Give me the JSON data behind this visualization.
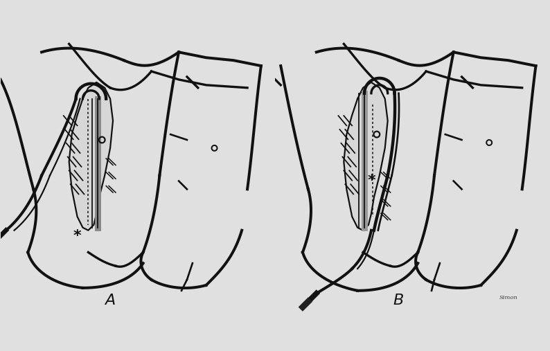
{
  "background_color": "#e0e0e0",
  "label_A": "A",
  "label_B": "B",
  "label_fontsize": 16,
  "line_color": "#111111",
  "line_color_light": "#555555",
  "line_width": 1.6,
  "figure_width": 7.94,
  "figure_height": 5.07,
  "dpi": 100,
  "lung_fill": "#c8c8c8",
  "lung_alpha": 0.35
}
